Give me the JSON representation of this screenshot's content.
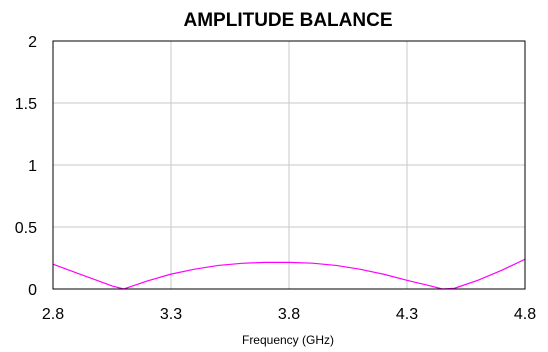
{
  "chart_data": {
    "type": "line",
    "title": "AMPLITUDE BALANCE",
    "xlabel": "Frequency (GHz)",
    "ylabel": "",
    "xlim": [
      2.8,
      4.8
    ],
    "ylim": [
      0,
      2
    ],
    "xticks": [
      "2.8",
      "3.3",
      "3.8",
      "4.3",
      "4.8"
    ],
    "yticks": [
      "0",
      "0.5",
      "1",
      "1.5",
      "2"
    ],
    "grid": true,
    "series": [
      {
        "color": "#ff00ff",
        "x": [
          2.8,
          2.9,
          3.0,
          3.05,
          3.1,
          3.2,
          3.3,
          3.4,
          3.5,
          3.6,
          3.7,
          3.8,
          3.9,
          4.0,
          4.1,
          4.2,
          4.3,
          4.4,
          4.45,
          4.5,
          4.6,
          4.7,
          4.8
        ],
        "y": [
          0.2,
          0.13,
          0.06,
          0.025,
          0.0,
          0.065,
          0.12,
          0.16,
          0.19,
          0.207,
          0.215,
          0.215,
          0.208,
          0.19,
          0.16,
          0.12,
          0.07,
          0.025,
          0.0,
          0.005,
          0.07,
          0.15,
          0.24
        ]
      }
    ]
  }
}
